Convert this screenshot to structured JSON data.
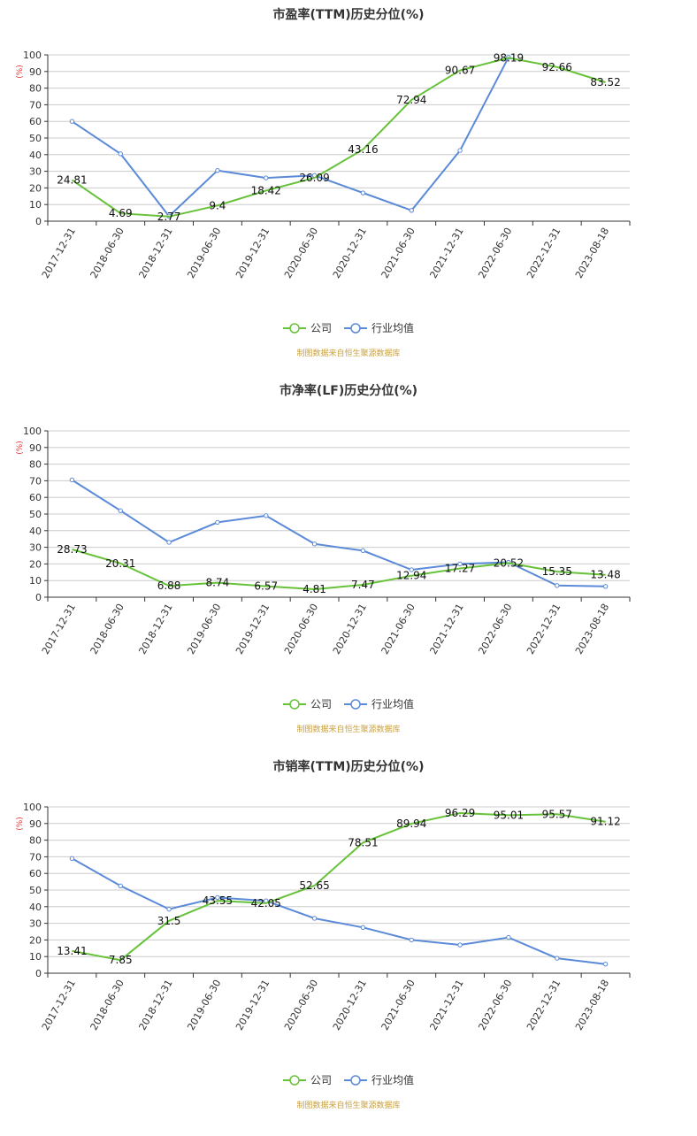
{
  "chart_data": [
    {
      "type": "line",
      "title": "市盈率(TTM)历史分位(%)",
      "ylabel": "(%)",
      "ylim": [
        0,
        100
      ],
      "yticks": [
        0,
        10,
        20,
        30,
        40,
        50,
        60,
        70,
        80,
        90,
        100
      ],
      "categories": [
        "2017-12-31",
        "2018-06-30",
        "2018-12-31",
        "2019-06-30",
        "2019-12-31",
        "2020-06-30",
        "2020-12-31",
        "2021-06-30",
        "2021-12-31",
        "2022-06-30",
        "2022-12-31",
        "2023-08-18"
      ],
      "series": [
        {
          "name": "公司",
          "color": "#67c23a",
          "values": [
            24.81,
            4.69,
            2.77,
            9.4,
            18.42,
            26.09,
            43.16,
            72.94,
            90.67,
            98.19,
            92.66,
            83.52
          ],
          "labels": [
            "24.81",
            "4.69",
            "2.77",
            "9.4",
            "18.42",
            "26.09",
            "43.16",
            "72.94",
            "90.67",
            "98.19",
            "92.66",
            "83.52"
          ]
        },
        {
          "name": "行业均值",
          "color": "#5b8ad8",
          "values": [
            60,
            40.5,
            3,
            30.5,
            26,
            27.5,
            17,
            6.5,
            42.5,
            98.5,
            null,
            null
          ]
        }
      ],
      "legend_position": "bottom",
      "source": "制图数据来自恒生聚源数据库"
    },
    {
      "type": "line",
      "title": "市净率(LF)历史分位(%)",
      "ylabel": "(%)",
      "ylim": [
        0,
        100
      ],
      "yticks": [
        0,
        10,
        20,
        30,
        40,
        50,
        60,
        70,
        80,
        90,
        100
      ],
      "categories": [
        "2017-12-31",
        "2018-06-30",
        "2018-12-31",
        "2019-06-30",
        "2019-12-31",
        "2020-06-30",
        "2020-12-31",
        "2021-06-30",
        "2021-12-31",
        "2022-06-30",
        "2022-12-31",
        "2023-08-18"
      ],
      "series": [
        {
          "name": "公司",
          "color": "#67c23a",
          "values": [
            28.73,
            20.31,
            6.88,
            8.74,
            6.57,
            4.81,
            7.47,
            12.94,
            17.27,
            20.52,
            15.35,
            13.48
          ],
          "labels": [
            "28.73",
            "20.31",
            "6.88",
            "8.74",
            "6.57",
            "4.81",
            "7.47",
            "12.94",
            "17.27",
            "20.52",
            "15.35",
            "13.48"
          ]
        },
        {
          "name": "行业均值",
          "color": "#5b8ad8",
          "values": [
            70.5,
            52,
            33,
            45,
            49,
            32,
            28,
            16.5,
            20,
            21,
            7,
            6.5
          ]
        }
      ],
      "legend_position": "bottom",
      "source": "制图数据来自恒生聚源数据库"
    },
    {
      "type": "line",
      "title": "市销率(TTM)历史分位(%)",
      "ylabel": "(%)",
      "ylim": [
        0,
        100
      ],
      "yticks": [
        0,
        10,
        20,
        30,
        40,
        50,
        60,
        70,
        80,
        90,
        100
      ],
      "categories": [
        "2017-12-31",
        "2018-06-30",
        "2018-12-31",
        "2019-06-30",
        "2019-12-31",
        "2020-06-30",
        "2020-12-31",
        "2021-06-30",
        "2021-12-31",
        "2022-06-30",
        "2022-12-31",
        "2023-08-18"
      ],
      "series": [
        {
          "name": "公司",
          "color": "#67c23a",
          "values": [
            13.41,
            7.85,
            31.5,
            43.55,
            42.05,
            52.65,
            78.51,
            89.94,
            96.29,
            95.01,
            95.57,
            91.12
          ],
          "labels": [
            "13.41",
            "7.85",
            "31.5",
            "43.55",
            "42.05",
            "52.65",
            "78.51",
            "89.94",
            "96.29",
            "95.01",
            "95.57",
            "91.12"
          ]
        },
        {
          "name": "行业均值",
          "color": "#5b8ad8",
          "values": [
            69,
            52.5,
            38.5,
            45.5,
            43.5,
            33,
            27.5,
            20,
            17,
            21.5,
            9,
            5.5
          ]
        }
      ],
      "legend_position": "bottom",
      "source": "制图数据来自恒生聚源数据库"
    }
  ]
}
